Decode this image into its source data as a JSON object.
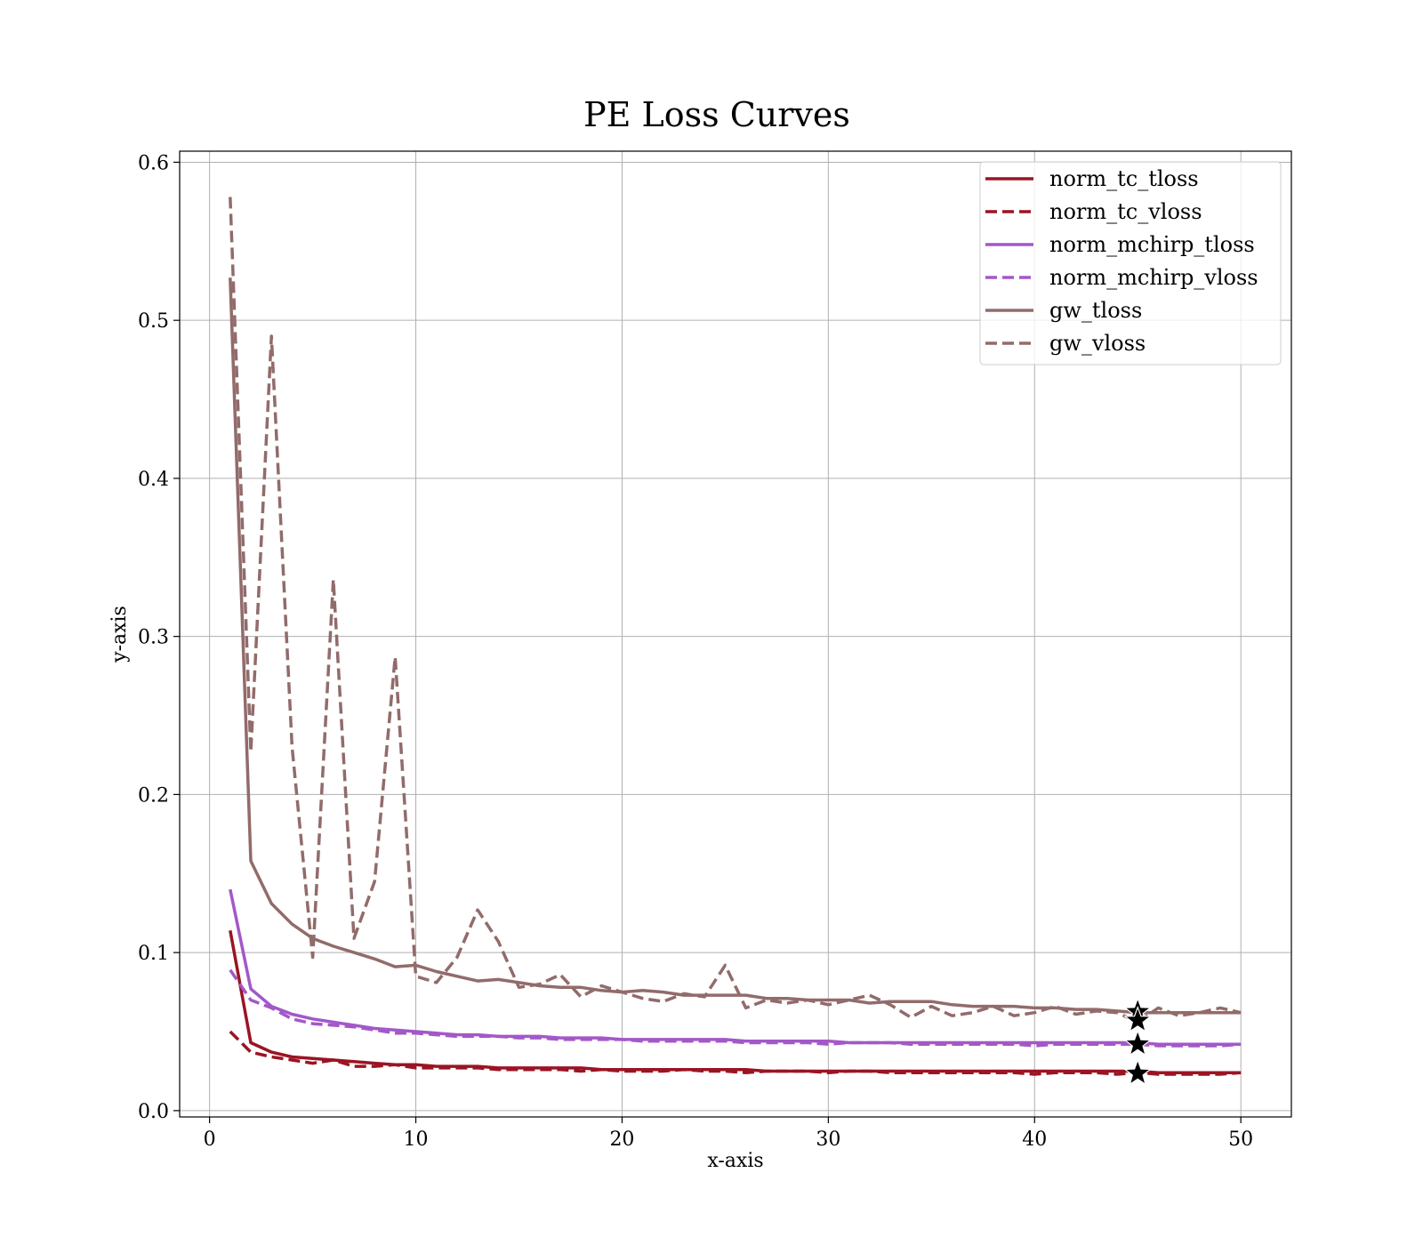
{
  "chart_data": {
    "type": "line",
    "title": "PE Loss Curves",
    "xlabel": "x-axis",
    "ylabel": "y-axis",
    "xlim": [
      -1.45,
      52.45
    ],
    "ylim": [
      -0.004,
      0.607
    ],
    "xticks": [
      0,
      10,
      20,
      30,
      40,
      50
    ],
    "yticks": [
      0.0,
      0.1,
      0.2,
      0.3,
      0.4,
      0.5,
      0.6
    ],
    "xtick_labels": [
      "0",
      "10",
      "20",
      "30",
      "40",
      "50"
    ],
    "ytick_labels": [
      "0.0",
      "0.1",
      "0.2",
      "0.3",
      "0.4",
      "0.5",
      "0.6"
    ],
    "grid": true,
    "legend_position": "top-right",
    "x": [
      1,
      2,
      3,
      4,
      5,
      6,
      7,
      8,
      9,
      10,
      11,
      12,
      13,
      14,
      15,
      16,
      17,
      18,
      19,
      20,
      21,
      22,
      23,
      24,
      25,
      26,
      27,
      28,
      29,
      30,
      31,
      32,
      33,
      34,
      35,
      36,
      37,
      38,
      39,
      40,
      41,
      42,
      43,
      44,
      45,
      46,
      47,
      48,
      49,
      50
    ],
    "series": [
      {
        "name": "norm_tc_tloss",
        "color": "#9b1423",
        "dash": "solid",
        "values": [
          0.114,
          0.043,
          0.037,
          0.034,
          0.033,
          0.032,
          0.031,
          0.03,
          0.029,
          0.029,
          0.028,
          0.028,
          0.028,
          0.027,
          0.027,
          0.027,
          0.027,
          0.027,
          0.026,
          0.026,
          0.026,
          0.026,
          0.026,
          0.026,
          0.026,
          0.026,
          0.025,
          0.025,
          0.025,
          0.025,
          0.025,
          0.025,
          0.025,
          0.025,
          0.025,
          0.025,
          0.025,
          0.025,
          0.025,
          0.025,
          0.025,
          0.025,
          0.025,
          0.025,
          0.025,
          0.024,
          0.024,
          0.024,
          0.024,
          0.024
        ]
      },
      {
        "name": "norm_tc_vloss",
        "color": "#9b1423",
        "dash": "dashed",
        "values": [
          0.05,
          0.037,
          0.034,
          0.032,
          0.03,
          0.032,
          0.028,
          0.028,
          0.029,
          0.027,
          0.027,
          0.027,
          0.027,
          0.026,
          0.026,
          0.026,
          0.026,
          0.025,
          0.026,
          0.025,
          0.025,
          0.025,
          0.026,
          0.025,
          0.025,
          0.024,
          0.025,
          0.025,
          0.025,
          0.024,
          0.025,
          0.025,
          0.024,
          0.024,
          0.024,
          0.024,
          0.024,
          0.024,
          0.024,
          0.023,
          0.024,
          0.024,
          0.024,
          0.023,
          0.024,
          0.023,
          0.023,
          0.023,
          0.023,
          0.024
        ]
      },
      {
        "name": "norm_mchirp_tloss",
        "color": "#a358c8",
        "dash": "solid",
        "values": [
          0.14,
          0.077,
          0.066,
          0.061,
          0.058,
          0.056,
          0.054,
          0.052,
          0.051,
          0.05,
          0.049,
          0.048,
          0.048,
          0.047,
          0.047,
          0.047,
          0.046,
          0.046,
          0.046,
          0.045,
          0.045,
          0.045,
          0.045,
          0.045,
          0.045,
          0.044,
          0.044,
          0.044,
          0.044,
          0.044,
          0.043,
          0.043,
          0.043,
          0.043,
          0.043,
          0.043,
          0.043,
          0.043,
          0.043,
          0.043,
          0.043,
          0.043,
          0.043,
          0.043,
          0.043,
          0.042,
          0.042,
          0.042,
          0.042,
          0.042
        ]
      },
      {
        "name": "norm_mchirp_vloss",
        "color": "#a358c8",
        "dash": "dashed",
        "values": [
          0.089,
          0.07,
          0.065,
          0.058,
          0.055,
          0.054,
          0.053,
          0.051,
          0.049,
          0.049,
          0.048,
          0.047,
          0.047,
          0.047,
          0.046,
          0.046,
          0.045,
          0.045,
          0.045,
          0.045,
          0.044,
          0.044,
          0.044,
          0.044,
          0.044,
          0.043,
          0.043,
          0.043,
          0.043,
          0.042,
          0.043,
          0.043,
          0.043,
          0.042,
          0.042,
          0.042,
          0.042,
          0.042,
          0.042,
          0.041,
          0.042,
          0.042,
          0.042,
          0.042,
          0.042,
          0.041,
          0.041,
          0.041,
          0.041,
          0.042
        ]
      },
      {
        "name": "gw_tloss",
        "color": "#926b6b",
        "dash": "solid",
        "values": [
          0.527,
          0.158,
          0.131,
          0.118,
          0.109,
          0.104,
          0.1,
          0.096,
          0.091,
          0.092,
          0.088,
          0.085,
          0.082,
          0.083,
          0.081,
          0.079,
          0.078,
          0.078,
          0.076,
          0.075,
          0.076,
          0.075,
          0.073,
          0.073,
          0.073,
          0.073,
          0.071,
          0.071,
          0.07,
          0.07,
          0.07,
          0.068,
          0.069,
          0.069,
          0.069,
          0.067,
          0.066,
          0.066,
          0.066,
          0.065,
          0.065,
          0.064,
          0.064,
          0.063,
          0.062,
          0.062,
          0.062,
          0.062,
          0.062,
          0.062
        ]
      },
      {
        "name": "gw_vloss",
        "color": "#926b6b",
        "dash": "dashed",
        "values": [
          0.578,
          0.227,
          0.49,
          0.23,
          0.097,
          0.336,
          0.109,
          0.145,
          0.287,
          0.085,
          0.081,
          0.097,
          0.127,
          0.107,
          0.078,
          0.08,
          0.086,
          0.072,
          0.079,
          0.075,
          0.071,
          0.069,
          0.074,
          0.072,
          0.092,
          0.065,
          0.07,
          0.068,
          0.07,
          0.067,
          0.07,
          0.073,
          0.067,
          0.059,
          0.066,
          0.06,
          0.062,
          0.066,
          0.06,
          0.062,
          0.066,
          0.061,
          0.063,
          0.062,
          0.056,
          0.065,
          0.06,
          0.062,
          0.065,
          0.062
        ]
      }
    ],
    "markers": [
      {
        "x": 45,
        "y": 0.0625
      },
      {
        "x": 45,
        "y": 0.057
      },
      {
        "x": 45,
        "y": 0.042
      },
      {
        "x": 45,
        "y": 0.0235
      }
    ]
  }
}
